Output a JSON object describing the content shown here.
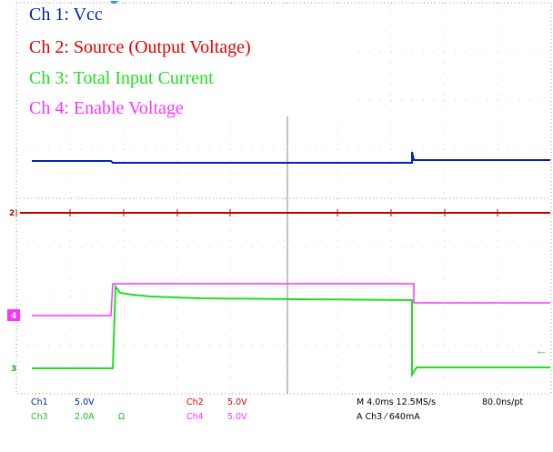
{
  "legend": [
    "Ch 1:  Vcc",
    "Ch 2:  Source (Output Voltage)",
    "Ch 3:  Total Input Current",
    "Ch 4:  Enable Voltage"
  ],
  "markers": {
    "ch2": "2",
    "ch3": "3",
    "ch4": "4"
  },
  "status": {
    "ch1": "Ch1",
    "ch1_scale": "5.0V",
    "ch3": "Ch3",
    "ch3_scale": "2.0A",
    "ch3_unit": "Ω",
    "ch2": "Ch2",
    "ch2_scale": "5.0V",
    "ch4": "Ch4",
    "ch4_scale": "5.0V",
    "timebase": "M 4.0ms 12.5MS/s",
    "resolution": "80.0ns/pt",
    "trigger": "A  Ch3  ⁄  640mA"
  }
}
